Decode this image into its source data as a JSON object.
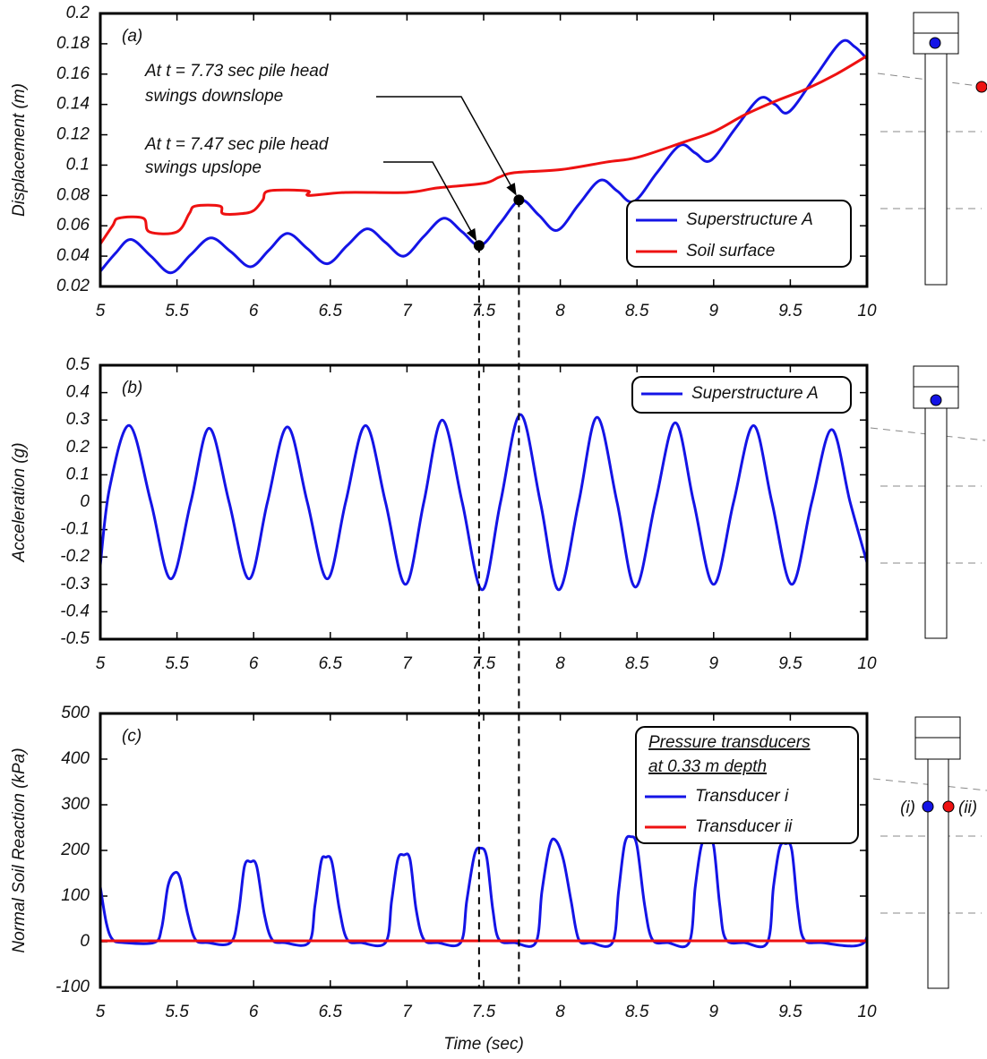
{
  "chart_data": [
    {
      "type": "line",
      "panel_label": "(a)",
      "y_label": "Displacement (m)",
      "xlim": [
        5,
        10
      ],
      "xticks": [
        5,
        5.5,
        6,
        6.5,
        7,
        7.5,
        8,
        8.5,
        9,
        9.5,
        10
      ],
      "ylim": [
        0.02,
        0.2
      ],
      "yticks": [
        0.02,
        0.04,
        0.06,
        0.08,
        0.1,
        0.12,
        0.14,
        0.16,
        0.18,
        0.2
      ],
      "series": [
        {
          "name": "Superstructure A",
          "color": "#1414e6",
          "x": [
            5.0,
            5.1,
            5.2,
            5.33,
            5.46,
            5.59,
            5.72,
            5.85,
            5.98,
            6.1,
            6.22,
            6.35,
            6.48,
            6.61,
            6.74,
            6.86,
            6.98,
            7.11,
            7.24,
            7.36,
            7.48,
            7.61,
            7.74,
            7.86,
            7.98,
            8.12,
            8.26,
            8.37,
            8.48,
            8.63,
            8.78,
            8.88,
            8.98,
            9.14,
            9.3,
            9.4,
            9.49,
            9.66,
            9.83,
            9.92,
            10.0
          ],
          "values": [
            0.03,
            0.042,
            0.051,
            0.04,
            0.029,
            0.041,
            0.052,
            0.043,
            0.033,
            0.044,
            0.055,
            0.045,
            0.035,
            0.047,
            0.058,
            0.049,
            0.04,
            0.053,
            0.065,
            0.056,
            0.047,
            0.062,
            0.077,
            0.067,
            0.057,
            0.074,
            0.09,
            0.083,
            0.076,
            0.095,
            0.113,
            0.108,
            0.103,
            0.124,
            0.144,
            0.14,
            0.135,
            0.158,
            0.181,
            0.178,
            0.17
          ]
        },
        {
          "name": "Soil surface",
          "color": "#ee1111",
          "x": [
            5.0,
            5.08,
            5.12,
            5.28,
            5.32,
            5.5,
            5.58,
            5.62,
            5.78,
            5.8,
            5.92,
            6.0,
            6.06,
            6.1,
            6.35,
            6.36,
            6.6,
            7.0,
            7.2,
            7.5,
            7.6,
            7.7,
            8.0,
            8.3,
            8.5,
            8.8,
            9.0,
            9.2,
            9.4,
            9.6,
            9.8,
            10.0
          ],
          "values": [
            0.048,
            0.06,
            0.065,
            0.065,
            0.056,
            0.056,
            0.068,
            0.073,
            0.073,
            0.068,
            0.068,
            0.07,
            0.077,
            0.083,
            0.083,
            0.08,
            0.082,
            0.082,
            0.085,
            0.088,
            0.092,
            0.095,
            0.097,
            0.102,
            0.105,
            0.115,
            0.122,
            0.133,
            0.142,
            0.15,
            0.16,
            0.172
          ]
        }
      ],
      "markers": [
        {
          "x": 7.73,
          "y": 0.077
        },
        {
          "x": 7.47,
          "y": 0.047
        }
      ],
      "annotations": [
        {
          "lines": [
            "At t = 7.73 sec pile head",
            "swings downslope"
          ]
        },
        {
          "lines": [
            "At t = 7.47 sec pile head",
            "swings upslope"
          ]
        }
      ]
    },
    {
      "type": "line",
      "panel_label": "(b)",
      "y_label": "Acceleration (g)",
      "xlim": [
        5,
        10
      ],
      "xticks": [
        5,
        5.5,
        6,
        6.5,
        7,
        7.5,
        8,
        8.5,
        9,
        9.5,
        10
      ],
      "ylim": [
        -0.5,
        0.5
      ],
      "yticks": [
        -0.5,
        -0.4,
        -0.3,
        -0.2,
        -0.1,
        0,
        0.1,
        0.2,
        0.3,
        0.4,
        0.5
      ],
      "series": [
        {
          "name": "Superstructure A",
          "color": "#1414e6",
          "x": [
            5.0,
            5.06,
            5.19,
            5.33,
            5.46,
            5.59,
            5.71,
            5.84,
            5.97,
            6.09,
            6.22,
            6.35,
            6.48,
            6.6,
            6.73,
            6.86,
            6.99,
            7.11,
            7.23,
            7.36,
            7.49,
            7.61,
            7.74,
            7.87,
            7.99,
            8.12,
            8.24,
            8.37,
            8.49,
            8.62,
            8.75,
            8.87,
            9.0,
            9.13,
            9.26,
            9.38,
            9.51,
            9.64,
            9.77,
            9.89,
            10.0
          ],
          "values": [
            -0.23,
            0.05,
            0.28,
            0.0,
            -0.28,
            0.0,
            0.27,
            0.0,
            -0.28,
            0.0,
            0.275,
            0.0,
            -0.28,
            0.0,
            0.28,
            0.0,
            -0.3,
            0.0,
            0.3,
            0.0,
            -0.32,
            0.0,
            0.32,
            0.0,
            -0.32,
            0.0,
            0.31,
            0.0,
            -0.31,
            0.0,
            0.29,
            0.0,
            -0.3,
            0.0,
            0.28,
            0.0,
            -0.3,
            0.0,
            0.265,
            0.0,
            -0.22
          ]
        }
      ]
    },
    {
      "type": "line",
      "panel_label": "(c)",
      "y_label": "Normal Soil Reaction (kPa)",
      "x_label": "Time (sec)",
      "xlim": [
        5,
        10
      ],
      "xticks": [
        5,
        5.5,
        6,
        6.5,
        7,
        7.5,
        8,
        8.5,
        9,
        9.5,
        10
      ],
      "ylim": [
        -100,
        500
      ],
      "yticks": [
        -100,
        0,
        100,
        200,
        300,
        400,
        500
      ],
      "legend_title": [
        "Pressure transducers",
        "at 0.33 m depth"
      ],
      "series": [
        {
          "name": "Transducer i",
          "color": "#1414e6",
          "x": [
            5.0,
            5.04,
            5.08,
            5.15,
            5.35,
            5.4,
            5.44,
            5.48,
            5.52,
            5.57,
            5.62,
            5.7,
            5.85,
            5.9,
            5.94,
            5.98,
            6.02,
            6.07,
            6.12,
            6.2,
            6.36,
            6.4,
            6.44,
            6.47,
            6.51,
            6.56,
            6.61,
            6.7,
            6.86,
            6.9,
            6.94,
            6.98,
            7.02,
            7.06,
            7.11,
            7.2,
            7.35,
            7.39,
            7.44,
            7.48,
            7.52,
            7.56,
            7.6,
            7.7,
            7.84,
            7.88,
            7.93,
            7.97,
            8.02,
            8.07,
            8.12,
            8.2,
            8.34,
            8.38,
            8.42,
            8.46,
            8.5,
            8.55,
            8.6,
            8.7,
            8.84,
            8.88,
            8.92,
            8.96,
            9.0,
            9.04,
            9.08,
            9.2,
            9.35,
            9.39,
            9.43,
            9.47,
            9.51,
            9.55,
            9.59,
            9.7,
            9.98,
            10.0
          ],
          "values": [
            120,
            40,
            5,
            -2,
            -2,
            30,
            120,
            150,
            140,
            60,
            5,
            -2,
            -2,
            60,
            165,
            175,
            165,
            60,
            5,
            -2,
            -2,
            80,
            175,
            185,
            175,
            70,
            5,
            -2,
            -2,
            90,
            180,
            190,
            180,
            70,
            5,
            -2,
            -2,
            90,
            190,
            205,
            185,
            70,
            5,
            -2,
            -2,
            110,
            210,
            222,
            180,
            90,
            5,
            -2,
            -2,
            110,
            215,
            230,
            210,
            80,
            5,
            -2,
            -2,
            120,
            210,
            222,
            210,
            80,
            5,
            -2,
            -2,
            120,
            205,
            215,
            200,
            70,
            5,
            -2,
            -2,
            95
          ]
        },
        {
          "name": "Transducer ii",
          "color": "#ee1111",
          "x": [
            5,
            10
          ],
          "values": [
            2,
            2
          ]
        }
      ]
    }
  ],
  "pile_labels": [
    "(i)",
    "(ii)"
  ]
}
